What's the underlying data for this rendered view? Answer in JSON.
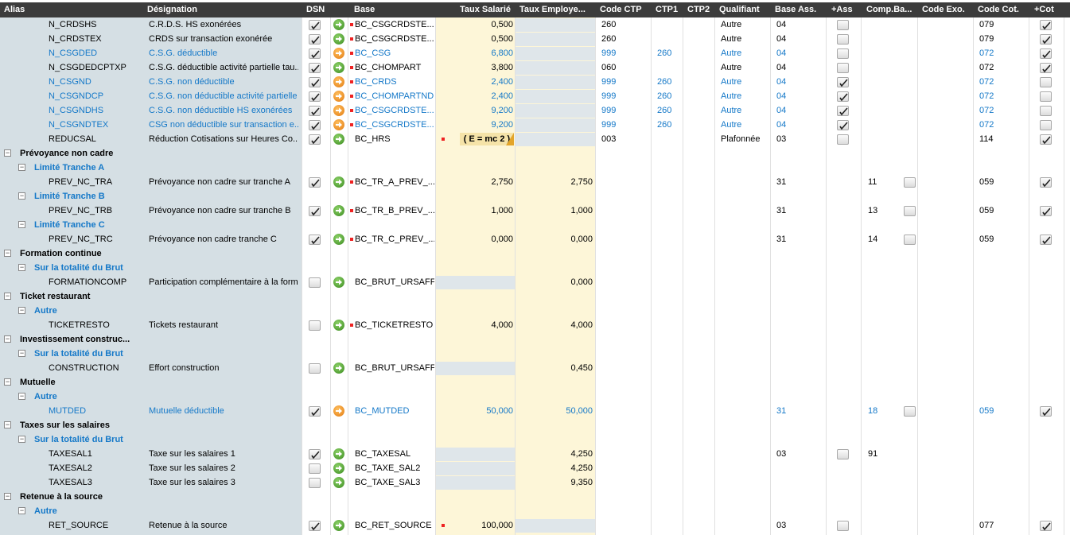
{
  "columns": {
    "alias": "Alias",
    "designation": "Désignation",
    "dsn": "DSN",
    "base": "Base",
    "taux_sal": "Taux Salarié",
    "taux_emp": "Taux Employe...",
    "code_ctp": "Code CTP",
    "ctp1": "CTP1",
    "ctp2": "CTP2",
    "qualifiant": "Qualifiant",
    "base_ass": "Base Ass.",
    "plus_ass": "+Ass",
    "comp_ba": "Comp.Ba...",
    "code_exo": "Code Exo.",
    "code_cot": "Code Cot.",
    "plus_cot": "+Cot"
  },
  "colors": {
    "header_bg": "#3c3c3c",
    "left_panel": "#d5dfe4",
    "rate_bg": "#fdf6d8",
    "blue_text": "#1478c8"
  },
  "rows": [
    {
      "type": "item",
      "alias": "N_CRDSHS",
      "designation": "C.R.D.S. HS exonérées",
      "dsn": true,
      "arrow": "green",
      "base": "BC_CSGCRDSTE...",
      "base_dot": true,
      "taux_sal": "0,500",
      "taux_emp": "",
      "code_ctp": "260",
      "ctp1": "",
      "qualifiant": "Autre",
      "base_ass": "04",
      "plus_ass": "box",
      "comp_ba": "",
      "comp_box": false,
      "code_cot": "079",
      "plus_cot": true,
      "blue": false,
      "emp_grey": true
    },
    {
      "type": "item",
      "alias": "N_CRDSTEX",
      "designation": "CRDS sur transaction exonérée",
      "dsn": true,
      "arrow": "green",
      "base": "BC_CSGCRDSTE...",
      "base_dot": true,
      "taux_sal": "0,500",
      "taux_emp": "",
      "code_ctp": "260",
      "ctp1": "",
      "qualifiant": "Autre",
      "base_ass": "04",
      "plus_ass": "box",
      "comp_ba": "",
      "comp_box": false,
      "code_cot": "079",
      "plus_cot": true,
      "blue": false,
      "emp_grey": true
    },
    {
      "type": "item",
      "alias": "N_CSGDED",
      "designation": "C.S.G. déductible",
      "dsn": true,
      "arrow": "orange",
      "base": "BC_CSG",
      "base_dot": true,
      "taux_sal": "6,800",
      "taux_emp": "",
      "code_ctp": "999",
      "ctp1": "260",
      "qualifiant": "Autre",
      "base_ass": "04",
      "plus_ass": "box",
      "comp_ba": "",
      "comp_box": false,
      "code_cot": "072",
      "plus_cot": true,
      "blue": true,
      "emp_grey": true
    },
    {
      "type": "item",
      "alias": "N_CSGDEDCPTXP",
      "designation": "C.S.G. déductible activité partielle tau...",
      "dsn": true,
      "arrow": "green",
      "base": "BC_CHOMPART",
      "base_dot": true,
      "taux_sal": "3,800",
      "taux_emp": "",
      "code_ctp": "060",
      "ctp1": "",
      "qualifiant": "Autre",
      "base_ass": "04",
      "plus_ass": "box",
      "comp_ba": "",
      "comp_box": false,
      "code_cot": "072",
      "plus_cot": true,
      "blue": false,
      "emp_grey": true
    },
    {
      "type": "item",
      "alias": "N_CSGND",
      "designation": "C.S.G. non déductible",
      "dsn": true,
      "arrow": "orange",
      "base": "BC_CRDS",
      "base_dot": true,
      "taux_sal": "2,400",
      "taux_emp": "",
      "code_ctp": "999",
      "ctp1": "260",
      "qualifiant": "Autre",
      "base_ass": "04",
      "plus_ass": "check",
      "comp_ba": "",
      "comp_box": false,
      "code_cot": "072",
      "plus_cot": false,
      "blue": true,
      "emp_grey": true
    },
    {
      "type": "item",
      "alias": "N_CSGNDCP",
      "designation": "C.S.G. non déductible activité partielle",
      "dsn": true,
      "arrow": "orange",
      "base": "BC_CHOMPARTND",
      "base_dot": true,
      "taux_sal": "2,400",
      "taux_emp": "",
      "code_ctp": "999",
      "ctp1": "260",
      "qualifiant": "Autre",
      "base_ass": "04",
      "plus_ass": "check",
      "comp_ba": "",
      "comp_box": false,
      "code_cot": "072",
      "plus_cot": false,
      "blue": true,
      "emp_grey": true
    },
    {
      "type": "item",
      "alias": "N_CSGNDHS",
      "designation": "C.S.G. non déductible HS exonérées",
      "dsn": true,
      "arrow": "orange",
      "base": "BC_CSGCRDSTE...",
      "base_dot": true,
      "taux_sal": "9,200",
      "taux_emp": "",
      "code_ctp": "999",
      "ctp1": "260",
      "qualifiant": "Autre",
      "base_ass": "04",
      "plus_ass": "check",
      "comp_ba": "",
      "comp_box": false,
      "code_cot": "072",
      "plus_cot": false,
      "blue": true,
      "emp_grey": true
    },
    {
      "type": "item",
      "alias": "N_CSGNDTEX",
      "designation": "CSG non déductible sur transaction e...",
      "dsn": true,
      "arrow": "orange",
      "base": "BC_CSGCRDSTE...",
      "base_dot": true,
      "taux_sal": "9,200",
      "taux_emp": "",
      "code_ctp": "999",
      "ctp1": "260",
      "qualifiant": "Autre",
      "base_ass": "04",
      "plus_ass": "check",
      "comp_ba": "",
      "comp_box": false,
      "code_cot": "072",
      "plus_cot": false,
      "blue": true,
      "emp_grey": true
    },
    {
      "type": "item",
      "alias": "REDUCSAL",
      "designation": "Réduction Cotisations sur Heures Co...",
      "dsn": true,
      "arrow": "green",
      "base": "BC_HRS",
      "base_dot": false,
      "taux_sal": "",
      "formula": "( E = mc 2 )",
      "taux_emp": "",
      "code_ctp": "003",
      "ctp1": "",
      "qualifiant": "Plafonnée",
      "base_ass": "03",
      "plus_ass": "box",
      "comp_ba": "",
      "comp_box": false,
      "code_cot": "114",
      "plus_cot": true,
      "blue": false,
      "emp_grey": true
    },
    {
      "type": "group",
      "label": "Prévoyance non cadre"
    },
    {
      "type": "sub",
      "label": "Limité Tranche A"
    },
    {
      "type": "item",
      "alias": "PREV_NC_TRA",
      "designation": "Prévoyance non cadre sur tranche A",
      "dsn": true,
      "arrow": "green",
      "base": "BC_TR_A_PREV_...",
      "base_dot": true,
      "taux_sal": "2,750",
      "taux_emp": "2,750",
      "code_ctp": "",
      "ctp1": "",
      "qualifiant": "",
      "base_ass": "31",
      "plus_ass": "",
      "comp_ba": "11",
      "comp_box": true,
      "code_cot": "059",
      "plus_cot": true,
      "blue": false
    },
    {
      "type": "sub",
      "label": "Limité Tranche B"
    },
    {
      "type": "item",
      "alias": "PREV_NC_TRB",
      "designation": "Prévoyance non cadre sur tranche B",
      "dsn": true,
      "arrow": "green",
      "base": "BC_TR_B_PREV_...",
      "base_dot": true,
      "taux_sal": "1,000",
      "taux_emp": "1,000",
      "code_ctp": "",
      "ctp1": "",
      "qualifiant": "",
      "base_ass": "31",
      "plus_ass": "",
      "comp_ba": "13",
      "comp_box": true,
      "code_cot": "059",
      "plus_cot": true,
      "blue": false
    },
    {
      "type": "sub",
      "label": "Limité Tranche C"
    },
    {
      "type": "item",
      "alias": "PREV_NC_TRC",
      "designation": "Prévoyance non cadre tranche C",
      "dsn": true,
      "arrow": "green",
      "base": "BC_TR_C_PREV_...",
      "base_dot": true,
      "taux_sal": "0,000",
      "taux_emp": "0,000",
      "code_ctp": "",
      "ctp1": "",
      "qualifiant": "",
      "base_ass": "31",
      "plus_ass": "",
      "comp_ba": "14",
      "comp_box": true,
      "code_cot": "059",
      "plus_cot": true,
      "blue": false
    },
    {
      "type": "group",
      "label": "Formation continue"
    },
    {
      "type": "sub",
      "label": "Sur la totalité du Brut"
    },
    {
      "type": "item",
      "alias": "FORMATIONCOMP",
      "designation": "Participation complémentaire à la form...",
      "dsn": false,
      "arrow": "green",
      "base": "BC_BRUT_URSAFF",
      "base_dot": false,
      "taux_sal": "",
      "sal_grey": true,
      "taux_emp": "0,000",
      "code_ctp": "",
      "ctp1": "",
      "qualifiant": "",
      "base_ass": "",
      "plus_ass": "",
      "comp_ba": "",
      "comp_box": false,
      "code_cot": "",
      "plus_cot": null,
      "blue": false
    },
    {
      "type": "group",
      "label": "Ticket restaurant"
    },
    {
      "type": "sub",
      "label": "Autre"
    },
    {
      "type": "item",
      "alias": "TICKETRESTO",
      "designation": "Tickets restaurant",
      "dsn": false,
      "arrow": "green",
      "base": "BC_TICKETRESTO",
      "base_dot": true,
      "taux_sal": "4,000",
      "taux_emp": "4,000",
      "code_ctp": "",
      "ctp1": "",
      "qualifiant": "",
      "base_ass": "",
      "plus_ass": "",
      "comp_ba": "",
      "comp_box": false,
      "code_cot": "",
      "plus_cot": null,
      "blue": false
    },
    {
      "type": "group",
      "label": "Investissement construc..."
    },
    {
      "type": "sub",
      "label": "Sur la totalité du Brut"
    },
    {
      "type": "item",
      "alias": "CONSTRUCTION",
      "designation": "Effort construction",
      "dsn": false,
      "arrow": "green",
      "base": "BC_BRUT_URSAFF",
      "base_dot": false,
      "taux_sal": "",
      "sal_grey": true,
      "taux_emp": "0,450",
      "code_ctp": "",
      "ctp1": "",
      "qualifiant": "",
      "base_ass": "",
      "plus_ass": "",
      "comp_ba": "",
      "comp_box": false,
      "code_cot": "",
      "plus_cot": null,
      "blue": false
    },
    {
      "type": "group",
      "label": "Mutuelle"
    },
    {
      "type": "sub",
      "label": "Autre"
    },
    {
      "type": "item",
      "alias": "MUTDED",
      "designation": "Mutuelle déductible",
      "dsn": true,
      "arrow": "orange",
      "base": "BC_MUTDED",
      "base_dot": false,
      "taux_sal": "50,000",
      "taux_emp": "50,000",
      "code_ctp": "",
      "ctp1": "",
      "qualifiant": "",
      "base_ass": "31",
      "plus_ass": "",
      "comp_ba": "18",
      "comp_box": true,
      "code_cot": "059",
      "plus_cot": true,
      "blue": true
    },
    {
      "type": "group",
      "label": "Taxes sur les salaires"
    },
    {
      "type": "sub",
      "label": "Sur la totalité du Brut"
    },
    {
      "type": "item",
      "alias": "TAXESAL1",
      "designation": "Taxe sur les salaires 1",
      "dsn": true,
      "arrow": "green",
      "base": "BC_TAXESAL",
      "base_dot": false,
      "taux_sal": "",
      "sal_grey": true,
      "taux_emp": "4,250",
      "code_ctp": "",
      "ctp1": "",
      "qualifiant": "",
      "base_ass": "03",
      "plus_ass": "box",
      "comp_ba": "91",
      "comp_box": false,
      "code_cot": "",
      "plus_cot": null,
      "blue": false
    },
    {
      "type": "item",
      "alias": "TAXESAL2",
      "designation": "Taxe sur les salaires 2",
      "dsn": false,
      "arrow": "green",
      "base": "BC_TAXE_SAL2",
      "base_dot": false,
      "taux_sal": "",
      "sal_grey": true,
      "taux_emp": "4,250",
      "code_ctp": "",
      "ctp1": "",
      "qualifiant": "",
      "base_ass": "",
      "plus_ass": "",
      "comp_ba": "",
      "comp_box": false,
      "code_cot": "",
      "plus_cot": null,
      "blue": false
    },
    {
      "type": "item",
      "alias": "TAXESAL3",
      "designation": "Taxe sur les salaires 3",
      "dsn": false,
      "arrow": "green",
      "base": "BC_TAXE_SAL3",
      "base_dot": false,
      "taux_sal": "",
      "sal_grey": true,
      "taux_emp": "9,350",
      "code_ctp": "",
      "ctp1": "",
      "qualifiant": "",
      "base_ass": "",
      "plus_ass": "",
      "comp_ba": "",
      "comp_box": false,
      "code_cot": "",
      "plus_cot": null,
      "blue": false
    },
    {
      "type": "group",
      "label": "Retenue à la source"
    },
    {
      "type": "sub",
      "label": "Autre"
    },
    {
      "type": "item",
      "alias": "RET_SOURCE",
      "designation": "Retenue à la source",
      "dsn": true,
      "arrow": "green",
      "base": "BC_RET_SOURCE",
      "base_dot": false,
      "taux_sal": "100,000",
      "sal_dot": true,
      "taux_emp": "",
      "emp_grey": true,
      "code_ctp": "",
      "ctp1": "",
      "qualifiant": "",
      "base_ass": "03",
      "plus_ass": "box",
      "comp_ba": "",
      "comp_box": false,
      "code_cot": "077",
      "plus_cot": true,
      "blue": false
    }
  ]
}
